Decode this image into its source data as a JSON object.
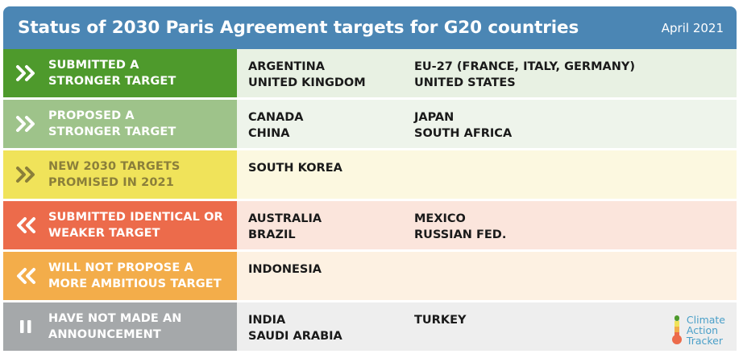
{
  "header": {
    "title": "Status of 2030 Paris Agreement targets for G20 countries",
    "date": "April 2021"
  },
  "rows": [
    {
      "label": "SUBMITTED A\nSTRONGER TARGET",
      "symbol": "double-chevron-right-icon",
      "status_color": "#4e9a2c",
      "row_color": "#e8f1e3",
      "col1": [
        "ARGENTINA",
        "UNITED KINGDOM"
      ],
      "col2": [
        "EU-27  (FRANCE, ITALY, GERMANY)",
        "UNITED STATES"
      ]
    },
    {
      "label": "PROPOSED A\nSTRONGER TARGET",
      "symbol": "double-chevron-right-icon",
      "status_color": "#9ec38a",
      "row_color": "#eef4eb",
      "col1": [
        "CANADA",
        "CHINA"
      ],
      "col2": [
        "JAPAN",
        "SOUTH AFRICA"
      ]
    },
    {
      "label": "NEW 2030 TARGETS\nPROMISED IN 2021",
      "symbol": "double-chevron-right-icon",
      "status_color": "#f0e35a",
      "row_color": "#fcf8e0",
      "col1": [
        "SOUTH KOREA"
      ],
      "col2": []
    },
    {
      "label": "SUBMITTED IDENTICAL OR\nWEAKER TARGET",
      "symbol": "double-chevron-left-icon",
      "status_color": "#ec6b4b",
      "row_color": "#fbe5dc",
      "col1": [
        "AUSTRALIA",
        "BRAZIL"
      ],
      "col2": [
        "MEXICO",
        "RUSSIAN FED."
      ]
    },
    {
      "label": "WILL NOT PROPOSE A\nMORE AMBITIOUS TARGET",
      "symbol": "double-chevron-left-icon",
      "status_color": "#f3ad4a",
      "row_color": "#fdf1e2",
      "col1": [
        "INDONESIA"
      ],
      "col2": []
    },
    {
      "label": "HAVE NOT MADE AN\nANNOUNCEMENT",
      "symbol": "pause-icon",
      "status_color": "#a5a8aa",
      "row_color": "#eeeeee",
      "col1": [
        "INDIA",
        "SAUDI ARABIA"
      ],
      "col2": [
        "TURKEY"
      ]
    }
  ],
  "logo": {
    "lines": [
      "Climate",
      "Action",
      "Tracker"
    ]
  }
}
